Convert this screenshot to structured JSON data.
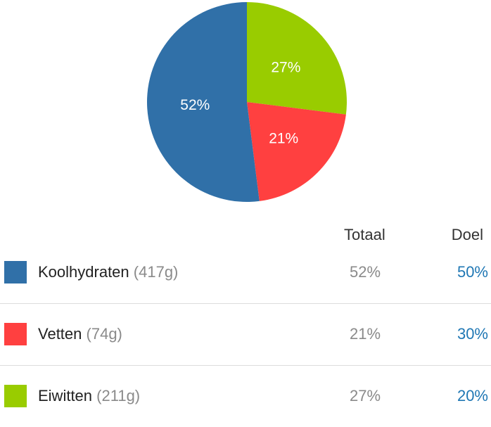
{
  "chart_data": {
    "type": "pie",
    "slices": [
      {
        "label": "Eiwitten",
        "value": 27,
        "value_label": "27%",
        "color": "#99cc00"
      },
      {
        "label": "Vetten",
        "value": 21,
        "value_label": "21%",
        "color": "#ff4040"
      },
      {
        "label": "Koolhydraten",
        "value": 52,
        "value_label": "52%",
        "color": "#3070a8"
      }
    ]
  },
  "table": {
    "header_total": "Totaal",
    "header_goal": "Doel",
    "rows": [
      {
        "name": "Koolhydraten",
        "grams": "(417g)",
        "total": "52%",
        "goal": "50%",
        "color": "#3070a8"
      },
      {
        "name": "Vetten",
        "grams": "(74g)",
        "total": "21%",
        "goal": "30%",
        "color": "#ff4040"
      },
      {
        "name": "Eiwitten",
        "grams": "(211g)",
        "total": "27%",
        "goal": "20%",
        "color": "#99cc00"
      }
    ]
  }
}
